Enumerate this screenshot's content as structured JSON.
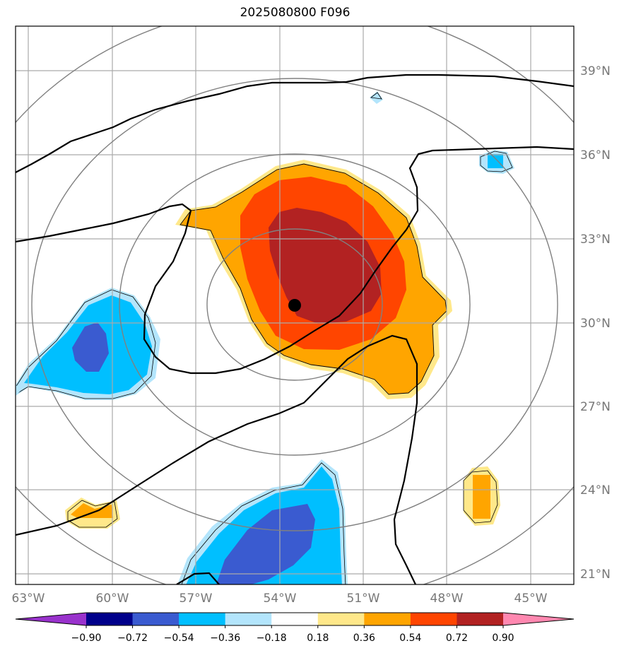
{
  "title": "2025080800 F096",
  "lat_labels": [
    "39°N",
    "36°N",
    "33°N",
    "30°N",
    "27°N",
    "24°N",
    "21°N"
  ],
  "lon_labels": [
    "63°W",
    "60°W",
    "57°W",
    "54°W",
    "51°W",
    "48°W",
    "45°W"
  ],
  "colorbar": {
    "tick_labels": [
      "−0.90",
      "−0.72",
      "−0.54",
      "−0.36",
      "−0.18",
      "0.18",
      "0.36",
      "0.54",
      "0.72",
      "0.90"
    ],
    "colors": [
      "#9932cc",
      "#00008b",
      "#3a5bd0",
      "#00bfff",
      "#b3e5fc",
      "#ffffff",
      "#ffe88a",
      "#ffa500",
      "#ff4500",
      "#b22222",
      "#ff88b0"
    ]
  },
  "colors": {
    "grid": "#aaaaaa",
    "range_rings": "#808080",
    "contour": "#000000",
    "center_marker": "#000000"
  }
}
